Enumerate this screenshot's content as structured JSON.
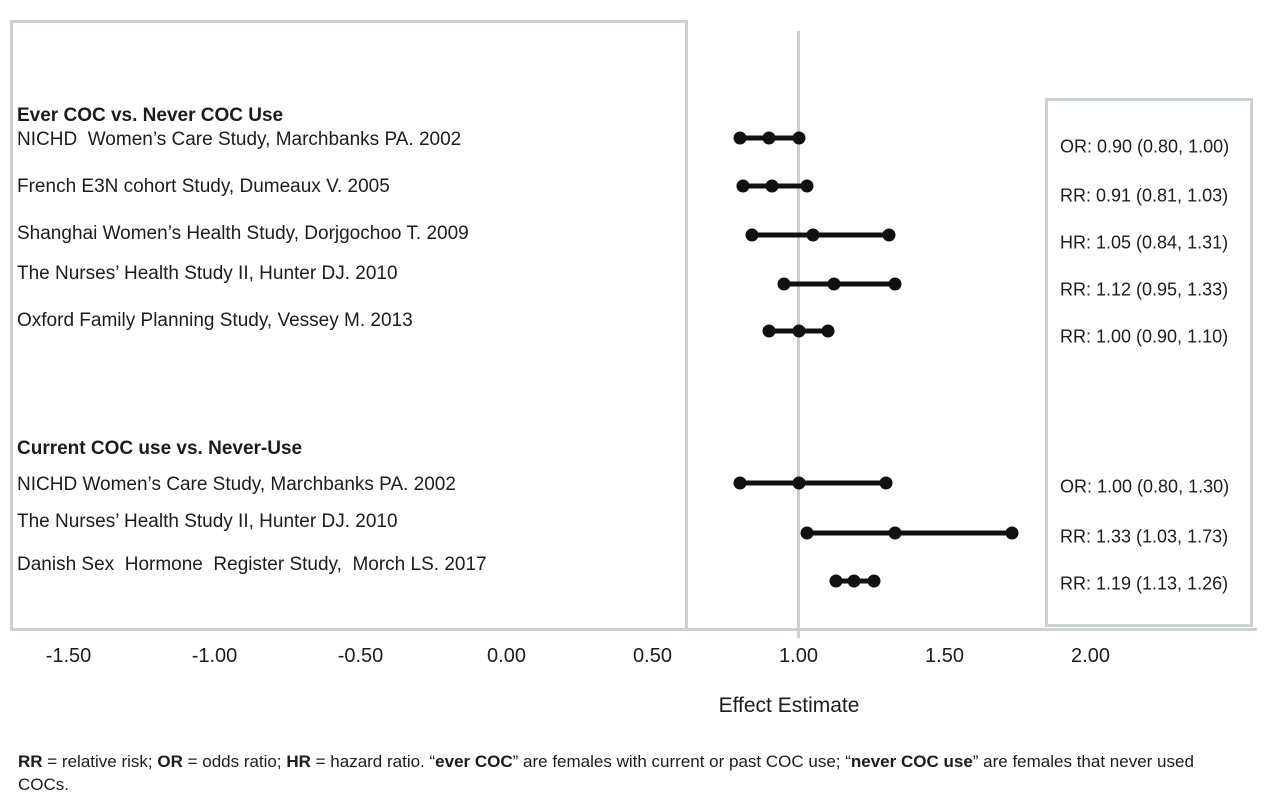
{
  "chart_data": {
    "type": "forest",
    "title": "",
    "xlabel": "Effect Estimate",
    "ylabel": "",
    "grid": false,
    "legend_position": "right-panel",
    "xlim": [
      -1.7,
      2.57
    ],
    "x_ticks": [
      -1.5,
      -1.0,
      -0.5,
      0.0,
      0.5,
      1.0,
      1.5,
      2.0
    ],
    "x_tick_labels": [
      "-1.50",
      "-1.00",
      "-0.50",
      "0.00",
      "0.50",
      "1.00",
      "1.50",
      "2.00"
    ],
    "reference_line": 1.0,
    "sections": [
      {
        "header": "Ever COC vs. Never COC Use",
        "rows": [
          {
            "label": "NICHD  Women’s Care Study, Marchbanks PA. 2002",
            "measure": "OR",
            "estimate": 0.9,
            "ci_low": 0.8,
            "ci_high": 1.0,
            "estimate_text": "OR: 0.90 (0.80, 1.00)"
          },
          {
            "label": "French E3N cohort Study, Dumeaux V. 2005",
            "measure": "RR",
            "estimate": 0.91,
            "ci_low": 0.81,
            "ci_high": 1.03,
            "estimate_text": "RR: 0.91 (0.81, 1.03)"
          },
          {
            "label": "Shanghai Women’s Health Study, Dorjgochoo T. 2009",
            "measure": "HR",
            "estimate": 1.05,
            "ci_low": 0.84,
            "ci_high": 1.31,
            "estimate_text": "HR: 1.05 (0.84, 1.31)"
          },
          {
            "label": "The Nurses’ Health Study II, Hunter DJ. 2010",
            "measure": "RR",
            "estimate": 1.12,
            "ci_low": 0.95,
            "ci_high": 1.33,
            "estimate_text": "RR: 1.12 (0.95, 1.33)"
          },
          {
            "label": "Oxford Family Planning Study, Vessey M. 2013",
            "measure": "RR",
            "estimate": 1.0,
            "ci_low": 0.9,
            "ci_high": 1.1,
            "estimate_text": "RR: 1.00 (0.90, 1.10)"
          }
        ]
      },
      {
        "header": "Current COC use vs. Never-Use",
        "rows": [
          {
            "label": "NICHD Women’s Care Study, Marchbanks PA. 2002",
            "measure": "OR",
            "estimate": 1.0,
            "ci_low": 0.8,
            "ci_high": 1.3,
            "estimate_text": "OR: 1.00 (0.80, 1.30)"
          },
          {
            "label": "The Nurses’ Health Study II, Hunter DJ. 2010",
            "measure": "RR",
            "estimate": 1.33,
            "ci_low": 1.03,
            "ci_high": 1.73,
            "estimate_text": "RR: 1.33 (1.03, 1.73)"
          },
          {
            "label": "Danish Sex  Hormone  Register Study,  Morch LS. 2017",
            "measure": "RR",
            "estimate": 1.19,
            "ci_low": 1.13,
            "ci_high": 1.26,
            "estimate_text": "RR: 1.19 (1.13, 1.26)"
          }
        ]
      }
    ]
  },
  "colors": {
    "frame": "#c9d2cf",
    "marker": "#111111",
    "text": "#1c1c1c"
  },
  "footnote": {
    "segments": [
      {
        "t": "RR",
        "b": true
      },
      {
        "t": " = relative risk; ",
        "b": false
      },
      {
        "t": "OR",
        "b": true
      },
      {
        "t": " = odds ratio; ",
        "b": false
      },
      {
        "t": "HR",
        "b": true
      },
      {
        "t": " = hazard ratio. “",
        "b": false
      },
      {
        "t": "ever COC",
        "b": true
      },
      {
        "t": "” are females with current or past COC use; “",
        "b": false
      },
      {
        "t": "never COC use",
        "b": true
      },
      {
        "t": "” are females that never used COCs.",
        "b": false
      }
    ]
  }
}
